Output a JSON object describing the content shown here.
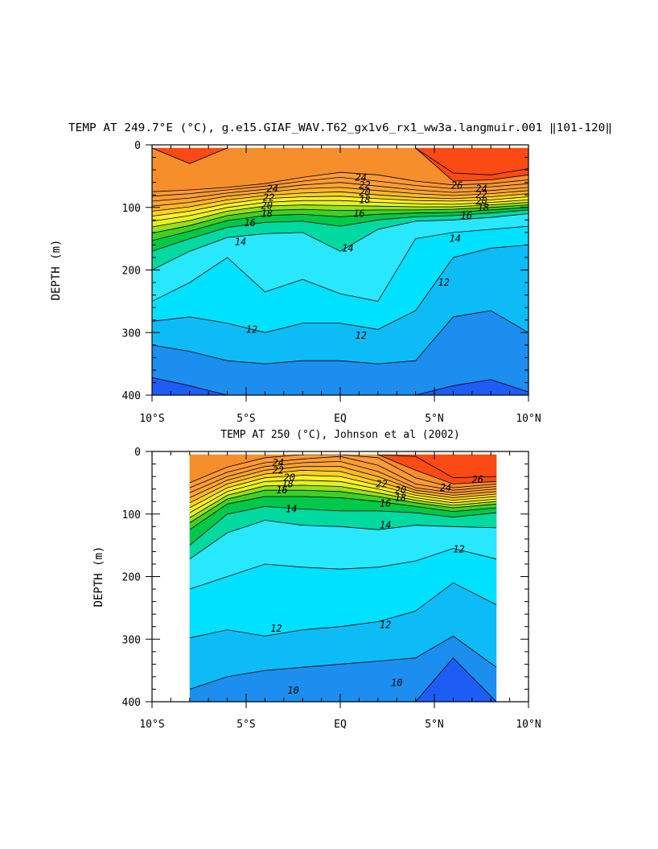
{
  "chart_data": [
    {
      "type": "contour",
      "title": "TEMP AT 249.7°E (°C), g.e15.GIAF_WAV.T62_gx1v6_rx1_ww3a.langmuir.001 ‖101-120‖",
      "xlabel": "",
      "ylabel": "DEPTH (m)",
      "xlim": [
        -10,
        10
      ],
      "ylim": [
        400,
        0
      ],
      "xticks": [
        "10°S",
        "5°S",
        "EQ",
        "5°N",
        "10°N"
      ],
      "yticks": [
        "0",
        "100",
        "200",
        "300",
        "400"
      ],
      "data_x_range": [
        -10,
        10
      ],
      "data_depth_top": 5,
      "isotherm_depths": {
        "x": [
          -10,
          -8,
          -6,
          -4,
          -2,
          0,
          2,
          4,
          6,
          8,
          10
        ],
        "levels": [
          {
            "t": 27,
            "d": [
              -1,
              -1,
              -1,
              -1,
              -1,
              -1,
              -1,
              -1,
              45,
              48,
              38
            ]
          },
          {
            "t": 26,
            "d": [
              -1,
              30,
              -1,
              -1,
              -1,
              -1,
              -1,
              5,
              58,
              56,
              48
            ]
          },
          {
            "t": 25,
            "d": [
              75,
              72,
              68,
              62,
              52,
              44,
              48,
              58,
              64,
              62,
              56
            ]
          },
          {
            "t": 24,
            "d": [
              82,
              78,
              72,
              66,
              58,
              52,
              58,
              65,
              70,
              67,
              62
            ]
          },
          {
            "t": 23,
            "d": [
              90,
              85,
              77,
              71,
              64,
              60,
              66,
              72,
              76,
              73,
              68
            ]
          },
          {
            "t": 22,
            "d": [
              98,
              92,
              82,
              76,
              70,
              68,
              73,
              78,
              81,
              78,
              73
            ]
          },
          {
            "t": 21,
            "d": [
              106,
              99,
              88,
              81,
              77,
              75,
              80,
              84,
              86,
              83,
              78
            ]
          },
          {
            "t": 20,
            "d": [
              114,
              106,
              94,
              86,
              83,
              82,
              86,
              89,
              90,
              88,
              83
            ]
          },
          {
            "t": 19,
            "d": [
              122,
              113,
              100,
              92,
              89,
              89,
              92,
              94,
              95,
              92,
              88
            ]
          },
          {
            "t": 18,
            "d": [
              131,
              121,
              106,
              98,
              96,
              97,
              98,
              99,
              99,
              96,
              92
            ]
          },
          {
            "t": 17,
            "d": [
              141,
              129,
              113,
              105,
              103,
              105,
              104,
              104,
              103,
              100,
              96
            ]
          },
          {
            "t": 16,
            "d": [
              153,
              138,
              121,
              113,
              111,
              115,
              111,
              109,
              108,
              104,
              100
            ]
          },
          {
            "t": 15,
            "d": [
              170,
              150,
              132,
              124,
              122,
              130,
              120,
              115,
              113,
              109,
              104
            ]
          },
          {
            "t": 14,
            "d": [
              200,
              170,
              148,
              142,
              140,
              170,
              135,
              122,
              120,
              116,
              110
            ]
          },
          {
            "t": 13,
            "d": [
              250,
              220,
              180,
              235,
              215,
              238,
              250,
              150,
              140,
              135,
              130
            ]
          },
          {
            "t": 12,
            "d": [
              282,
              275,
              285,
              300,
              285,
              285,
              295,
              265,
              180,
              165,
              160
            ]
          },
          {
            "t": 11,
            "d": [
              320,
              330,
              345,
              350,
              345,
              345,
              350,
              345,
              275,
              265,
              300
            ]
          },
          {
            "t": 10,
            "d": [
              372,
              385,
              400,
              400,
              400,
              400,
              400,
              400,
              385,
              375,
              395
            ]
          }
        ]
      },
      "contour_labels": [
        "24",
        "22",
        "20",
        "18",
        "16",
        "14",
        "24",
        "22",
        "20",
        "18",
        "16",
        "14",
        "26",
        "24",
        "22",
        "20",
        "18",
        "16",
        "14",
        "12",
        "12",
        "12"
      ]
    },
    {
      "type": "contour",
      "title": "TEMP AT 250 (°C), Johnson et al (2002)",
      "xlabel": "",
      "ylabel": "DEPTH (m)",
      "xlim": [
        -10,
        10
      ],
      "ylim": [
        400,
        0
      ],
      "xticks": [
        "10°S",
        "5°S",
        "EQ",
        "5°N",
        "10°N"
      ],
      "yticks": [
        "0",
        "100",
        "200",
        "300",
        "400"
      ],
      "data_x_range": [
        -8,
        8.3
      ],
      "data_depth_top": 5,
      "isotherm_depths": {
        "x": [
          -8,
          -6,
          -4,
          -2,
          0,
          2,
          4,
          6,
          8.3
        ],
        "levels": [
          {
            "t": 27,
            "d": [
              -1,
              -1,
              -1,
              -1,
              -1,
              -1,
              8,
              42,
              40
            ]
          },
          {
            "t": 26,
            "d": [
              -1,
              -1,
              -1,
              -1,
              -1,
              -1,
              30,
              52,
              48
            ]
          },
          {
            "t": 25,
            "d": [
              50,
              25,
              10,
              5,
              0,
              10,
              42,
              58,
              52
            ]
          },
          {
            "t": 24,
            "d": [
              58,
              33,
              18,
              12,
              8,
              22,
              52,
              62,
              56
            ]
          },
          {
            "t": 23,
            "d": [
              66,
              40,
              24,
              18,
              16,
              32,
              58,
              66,
              60
            ]
          },
          {
            "t": 22,
            "d": [
              74,
              46,
              30,
              24,
              24,
              40,
              62,
              70,
              64
            ]
          },
          {
            "t": 21,
            "d": [
              82,
              52,
              36,
              30,
              32,
              48,
              66,
              74,
              68
            ]
          },
          {
            "t": 20,
            "d": [
              90,
              58,
              42,
              38,
              40,
              54,
              70,
              78,
              72
            ]
          },
          {
            "t": 19,
            "d": [
              98,
              64,
              48,
              46,
              48,
              60,
              74,
              82,
              76
            ]
          },
          {
            "t": 18,
            "d": [
              106,
              70,
              55,
              54,
              56,
              66,
              78,
              86,
              80
            ]
          },
          {
            "t": 17,
            "d": [
              114,
              76,
              62,
              62,
              64,
              72,
              82,
              90,
              84
            ]
          },
          {
            "t": 16,
            "d": [
              125,
              84,
              72,
              72,
              74,
              80,
              88,
              96,
              90
            ]
          },
          {
            "t": 15,
            "d": [
              150,
              100,
              88,
              92,
              95,
              95,
              98,
              105,
              98
            ]
          },
          {
            "t": 14,
            "d": [
              172,
              130,
              110,
              118,
              120,
              125,
              118,
              120,
              122
            ]
          },
          {
            "t": 13,
            "d": [
              220,
              200,
              180,
              185,
              188,
              185,
              175,
              155,
              172
            ]
          },
          {
            "t": 12,
            "d": [
              298,
              285,
              295,
              285,
              280,
              272,
              255,
              210,
              245
            ]
          },
          {
            "t": 11,
            "d": [
              380,
              360,
              350,
              345,
              340,
              335,
              330,
              295,
              345
            ]
          },
          {
            "t": 10,
            "d": [
              400,
              400,
              400,
              400,
              400,
              400,
              400,
              330,
              400
            ]
          }
        ]
      },
      "contour_labels": [
        "24",
        "22",
        "20",
        "18",
        "16",
        "14",
        "22",
        "20",
        "18",
        "16",
        "14",
        "26",
        "24",
        "12",
        "12",
        "12",
        "10",
        "10"
      ]
    }
  ],
  "colors": {
    "10": "#1e5df5",
    "11": "#1b8ef0",
    "12": "#0dbcf7",
    "13": "#00e0ff",
    "14": "#28e8ff",
    "15": "#00d9a0",
    "16": "#00c84a",
    "17": "#3fd025",
    "18": "#96e01c",
    "19": "#e6f21c",
    "20": "#fff02a",
    "21": "#ffd21e",
    "22": "#ffb72a",
    "23": "#ffa534",
    "24": "#ff9c38",
    "25": "#ff9a38",
    "26": "#f78e2c",
    "27": "#fb4a14"
  }
}
